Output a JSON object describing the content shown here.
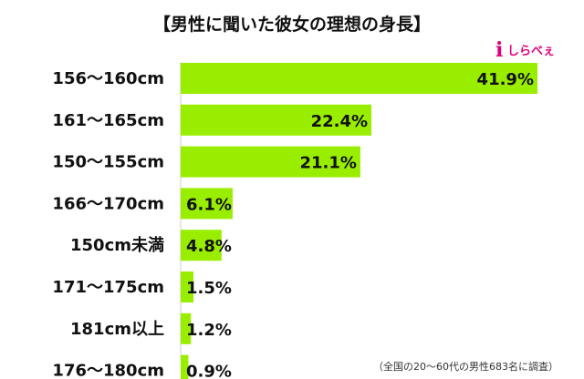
{
  "chart_data": {
    "type": "bar",
    "orientation": "horizontal",
    "title": "【男性に聞いた彼女の理想の身長】",
    "categories": [
      "156〜160cm",
      "161〜165cm",
      "150〜155cm",
      "166〜170cm",
      "150cm未満",
      "171〜175cm",
      "181cm以上",
      "176〜180cm"
    ],
    "values": [
      41.9,
      22.4,
      21.1,
      6.1,
      4.8,
      1.5,
      1.2,
      0.9
    ],
    "value_labels": [
      "41.9%",
      "22.4%",
      "21.1%",
      "6.1%",
      "4.8%",
      "1.5%",
      "1.2%",
      "0.9%"
    ],
    "xlim": [
      0,
      45
    ],
    "bar_color": "#99ee00",
    "grid": false,
    "legend": "none",
    "note": "（全国の20〜60代の男性683名に調査）"
  },
  "logo": {
    "glyph": "i",
    "text": "しらべぇ",
    "color": "#e2007a"
  }
}
